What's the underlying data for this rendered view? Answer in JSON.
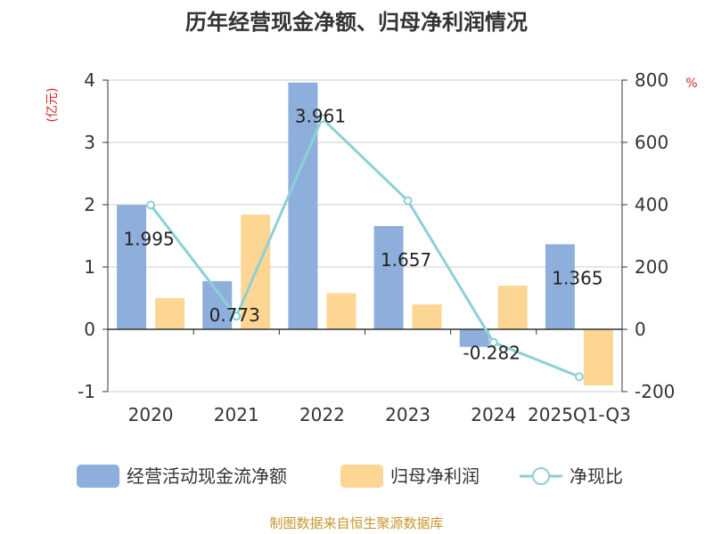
{
  "chart_data": {
    "type": "bar",
    "title": "历年经营现金净额、归母净利润情况",
    "categories": [
      "2020",
      "2021",
      "2022",
      "2023",
      "2024",
      "2025Q1-Q3"
    ],
    "y_left": {
      "label": "(亿元)",
      "range": [
        -1,
        4
      ],
      "ticks": [
        "-1",
        "0",
        "1",
        "2",
        "3",
        "4"
      ]
    },
    "y_right": {
      "label": "%",
      "range": [
        -200,
        800
      ],
      "ticks": [
        "-200",
        "0",
        "200",
        "400",
        "600",
        "800"
      ]
    },
    "series": [
      {
        "name": "经营活动现金流净额",
        "type": "bar",
        "axis": "left",
        "color": "#8eafdc",
        "values": [
          1.995,
          0.773,
          3.961,
          1.657,
          -0.282,
          1.365
        ],
        "labels": [
          "1.995",
          "0.773",
          "3.961",
          "1.657",
          "-0.282",
          "1.365"
        ]
      },
      {
        "name": "归母净利润",
        "type": "bar",
        "axis": "left",
        "color": "#fdd694",
        "values": [
          0.5,
          1.84,
          0.58,
          0.4,
          0.7,
          -0.9
        ]
      },
      {
        "name": "净现比",
        "type": "line",
        "axis": "right",
        "color": "#8bd1d6",
        "values": [
          399,
          42,
          677,
          413,
          -42,
          -152
        ]
      }
    ],
    "grid": true,
    "legend_position": "bottom",
    "source": "制图数据来自恒生聚源数据库",
    "colors": {
      "unit_text": "#d4242b",
      "source_text": "#c8962e",
      "axis": "#333333",
      "grid": "#cccccc"
    }
  }
}
